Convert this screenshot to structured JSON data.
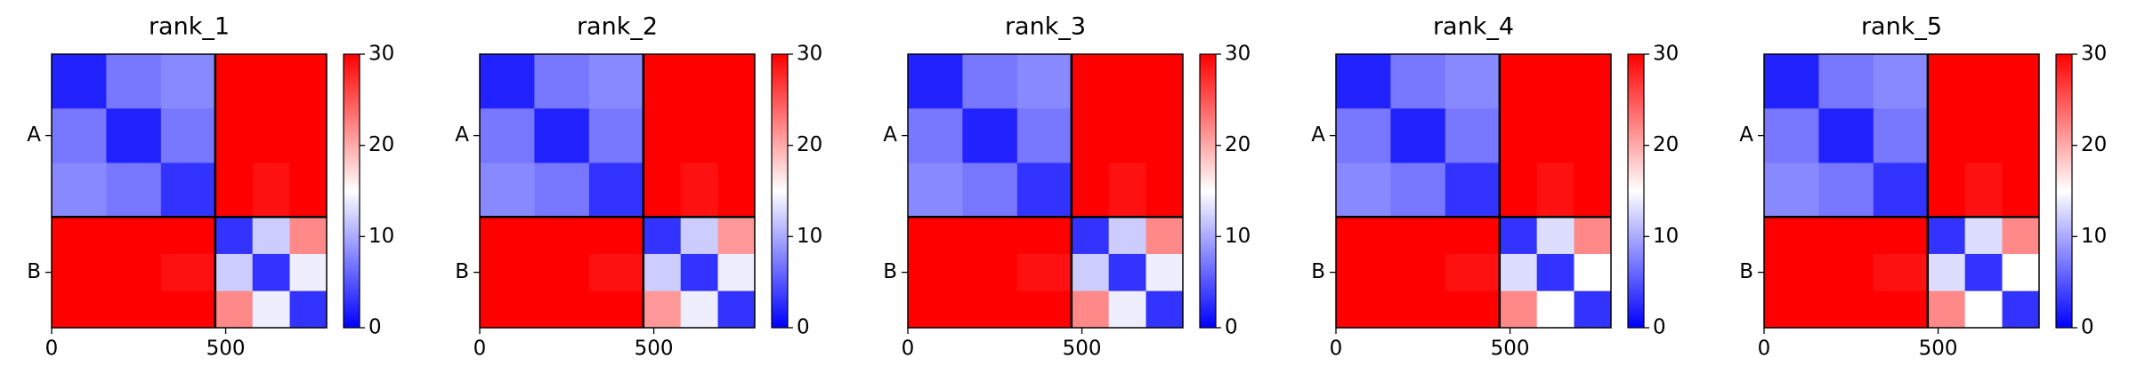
{
  "chart_data": [
    {
      "type": "heatmap",
      "title": "rank_1",
      "colormap": "bwr",
      "clim": [
        0,
        30
      ],
      "cticks": [
        0,
        10,
        20,
        30
      ],
      "xlim": [
        0,
        790
      ],
      "xticks": [
        0,
        500
      ],
      "ylim": [
        790,
        0
      ],
      "yticks": [
        {
          "value": 235,
          "label": "A"
        },
        {
          "value": 630,
          "label": "B"
        }
      ],
      "chain_breaks": [
        470
      ],
      "bins": [
        0,
        157,
        314,
        470,
        577,
        684,
        790
      ],
      "values": [
        [
          2,
          7,
          8,
          30,
          30,
          30
        ],
        [
          7,
          2,
          7,
          30,
          30,
          30
        ],
        [
          8,
          7,
          3,
          30,
          29,
          30
        ],
        [
          30,
          30,
          30,
          3,
          12,
          22
        ],
        [
          30,
          30,
          29,
          12,
          3,
          14
        ],
        [
          30,
          30,
          30,
          22,
          14,
          3
        ]
      ]
    },
    {
      "type": "heatmap",
      "title": "rank_2",
      "colormap": "bwr",
      "clim": [
        0,
        30
      ],
      "cticks": [
        0,
        10,
        20,
        30
      ],
      "xlim": [
        0,
        790
      ],
      "xticks": [
        0,
        500
      ],
      "ylim": [
        790,
        0
      ],
      "yticks": [
        {
          "value": 235,
          "label": "A"
        },
        {
          "value": 630,
          "label": "B"
        }
      ],
      "chain_breaks": [
        470
      ],
      "bins": [
        0,
        157,
        314,
        470,
        577,
        684,
        790
      ],
      "values": [
        [
          2,
          7,
          8,
          30,
          30,
          30
        ],
        [
          7,
          2,
          7,
          30,
          30,
          30
        ],
        [
          8,
          7,
          3,
          30,
          29,
          30
        ],
        [
          30,
          30,
          30,
          3,
          12,
          21
        ],
        [
          30,
          30,
          29,
          12,
          3,
          14
        ],
        [
          30,
          30,
          30,
          21,
          14,
          3
        ]
      ]
    },
    {
      "type": "heatmap",
      "title": "rank_3",
      "colormap": "bwr",
      "clim": [
        0,
        30
      ],
      "cticks": [
        0,
        10,
        20,
        30
      ],
      "xlim": [
        0,
        790
      ],
      "xticks": [
        0,
        500
      ],
      "ylim": [
        790,
        0
      ],
      "yticks": [
        {
          "value": 235,
          "label": "A"
        },
        {
          "value": 630,
          "label": "B"
        }
      ],
      "chain_breaks": [
        470
      ],
      "bins": [
        0,
        157,
        314,
        470,
        577,
        684,
        790
      ],
      "values": [
        [
          2,
          7,
          8,
          30,
          30,
          30
        ],
        [
          7,
          2,
          7,
          30,
          30,
          30
        ],
        [
          8,
          7,
          3,
          30,
          29,
          30
        ],
        [
          30,
          30,
          30,
          3,
          12,
          22
        ],
        [
          30,
          30,
          29,
          12,
          3,
          14
        ],
        [
          30,
          30,
          30,
          22,
          14,
          3
        ]
      ]
    },
    {
      "type": "heatmap",
      "title": "rank_4",
      "colormap": "bwr",
      "clim": [
        0,
        30
      ],
      "cticks": [
        0,
        10,
        20,
        30
      ],
      "xlim": [
        0,
        790
      ],
      "xticks": [
        0,
        500
      ],
      "ylim": [
        790,
        0
      ],
      "yticks": [
        {
          "value": 235,
          "label": "A"
        },
        {
          "value": 630,
          "label": "B"
        }
      ],
      "chain_breaks": [
        470
      ],
      "bins": [
        0,
        157,
        314,
        470,
        577,
        684,
        790
      ],
      "values": [
        [
          2,
          7,
          8,
          30,
          30,
          30
        ],
        [
          7,
          2,
          7,
          30,
          30,
          30
        ],
        [
          8,
          7,
          3,
          30,
          29,
          30
        ],
        [
          30,
          30,
          30,
          3,
          13,
          22
        ],
        [
          30,
          30,
          29,
          13,
          3,
          15
        ],
        [
          30,
          30,
          30,
          22,
          15,
          3
        ]
      ]
    },
    {
      "type": "heatmap",
      "title": "rank_5",
      "colormap": "bwr",
      "clim": [
        0,
        30
      ],
      "cticks": [
        0,
        10,
        20,
        30
      ],
      "xlim": [
        0,
        790
      ],
      "xticks": [
        0,
        500
      ],
      "ylim": [
        790,
        0
      ],
      "yticks": [
        {
          "value": 235,
          "label": "A"
        },
        {
          "value": 630,
          "label": "B"
        }
      ],
      "chain_breaks": [
        470
      ],
      "bins": [
        0,
        157,
        314,
        470,
        577,
        684,
        790
      ],
      "values": [
        [
          2,
          7,
          8,
          30,
          30,
          30
        ],
        [
          7,
          2,
          7,
          30,
          30,
          30
        ],
        [
          8,
          7,
          3,
          30,
          29,
          30
        ],
        [
          30,
          30,
          30,
          3,
          13,
          22
        ],
        [
          30,
          30,
          29,
          13,
          3,
          15
        ],
        [
          30,
          30,
          30,
          22,
          15,
          3
        ]
      ]
    }
  ]
}
